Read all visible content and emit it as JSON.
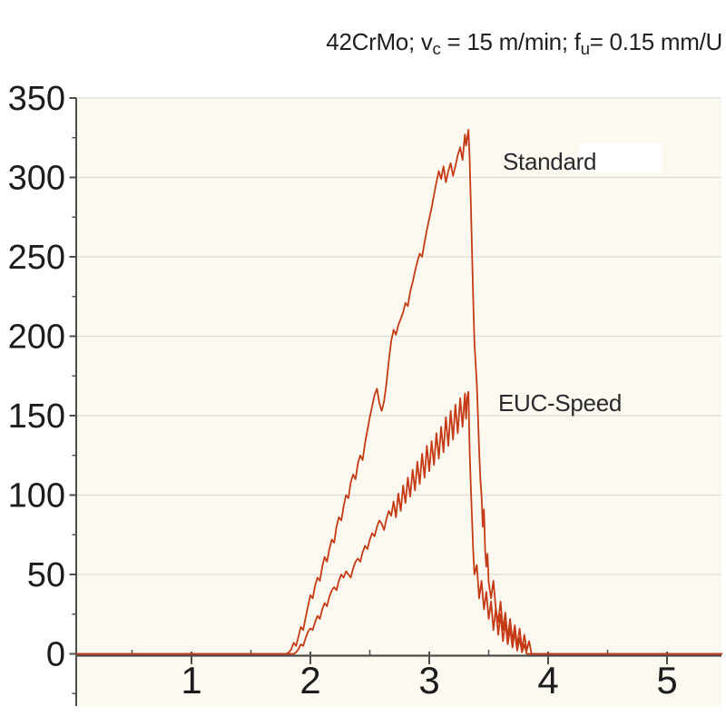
{
  "title": {
    "plain": "42CrMo; vc = 15 m/min; fu= 0.15 mm/U",
    "segments": [
      {
        "text": "42CrMo; v"
      },
      {
        "text": "c",
        "sub": true
      },
      {
        "text": " = 15 m/min;  f"
      },
      {
        "text": "u",
        "sub": true
      },
      {
        "text": "= 0.15 mm/U"
      }
    ]
  },
  "labels": {
    "standard": "Standard",
    "euc_speed": "EUC-Speed"
  },
  "chart_data": {
    "type": "line",
    "title": "42CrMo; vc = 15 m/min; fu= 0.15 mm/U",
    "xlabel": "",
    "ylabel": "",
    "xlim": [
      0,
      5.46
    ],
    "ylim": [
      -32,
      350
    ],
    "x_ticks_major": [
      1,
      2,
      3,
      4,
      5
    ],
    "x_ticks_minor": [
      0.5,
      1.5,
      2.5,
      3.5,
      4.5
    ],
    "y_ticks_major": [
      0,
      50,
      100,
      150,
      200,
      250,
      300,
      350
    ],
    "y_ticks_minor": [
      -25,
      25,
      75,
      125,
      175,
      225,
      275,
      325
    ],
    "grid": "horizontal-major",
    "legend_position": "inline-annotations",
    "colors": {
      "curve": "#c43b16",
      "plot_background": "#fcf9f1",
      "grid": "#dddcd8",
      "axis": "#4d4d4b",
      "text": "#1c1c1e",
      "page_background": "#ffffff"
    },
    "series": [
      {
        "name": "Standard",
        "label_text": "Standard",
        "color": "#c43b16",
        "points": [
          [
            0.04,
            0
          ],
          [
            1.8,
            0
          ],
          [
            1.82,
            1
          ],
          [
            1.84,
            3
          ],
          [
            1.86,
            7
          ],
          [
            1.88,
            5
          ],
          [
            1.9,
            11
          ],
          [
            1.92,
            17
          ],
          [
            1.94,
            15
          ],
          [
            1.96,
            23
          ],
          [
            1.98,
            30
          ],
          [
            2.0,
            37
          ],
          [
            2.02,
            35
          ],
          [
            2.04,
            43
          ],
          [
            2.06,
            48
          ],
          [
            2.08,
            46
          ],
          [
            2.1,
            55
          ],
          [
            2.12,
            61
          ],
          [
            2.14,
            58
          ],
          [
            2.16,
            66
          ],
          [
            2.18,
            72
          ],
          [
            2.2,
            70
          ],
          [
            2.22,
            80
          ],
          [
            2.24,
            86
          ],
          [
            2.26,
            84
          ],
          [
            2.28,
            93
          ],
          [
            2.3,
            100
          ],
          [
            2.32,
            98
          ],
          [
            2.34,
            108
          ],
          [
            2.36,
            113
          ],
          [
            2.38,
            110
          ],
          [
            2.4,
            120
          ],
          [
            2.42,
            125
          ],
          [
            2.44,
            122
          ],
          [
            2.46,
            133
          ],
          [
            2.48,
            141
          ],
          [
            2.5,
            149
          ],
          [
            2.52,
            156
          ],
          [
            2.54,
            163
          ],
          [
            2.56,
            167
          ],
          [
            2.58,
            158
          ],
          [
            2.6,
            153
          ],
          [
            2.62,
            159
          ],
          [
            2.64,
            170
          ],
          [
            2.66,
            185
          ],
          [
            2.68,
            197
          ],
          [
            2.7,
            204
          ],
          [
            2.72,
            201
          ],
          [
            2.74,
            207
          ],
          [
            2.76,
            211
          ],
          [
            2.78,
            215
          ],
          [
            2.8,
            221
          ],
          [
            2.82,
            219
          ],
          [
            2.84,
            228
          ],
          [
            2.86,
            234
          ],
          [
            2.88,
            241
          ],
          [
            2.9,
            247
          ],
          [
            2.92,
            252
          ],
          [
            2.94,
            250
          ],
          [
            2.96,
            259
          ],
          [
            2.98,
            267
          ],
          [
            3.0,
            274
          ],
          [
            3.02,
            281
          ],
          [
            3.04,
            289
          ],
          [
            3.06,
            297
          ],
          [
            3.08,
            304
          ],
          [
            3.1,
            299
          ],
          [
            3.12,
            307
          ],
          [
            3.14,
            297
          ],
          [
            3.16,
            304
          ],
          [
            3.18,
            309
          ],
          [
            3.2,
            301
          ],
          [
            3.22,
            307
          ],
          [
            3.24,
            314
          ],
          [
            3.26,
            319
          ],
          [
            3.28,
            311
          ],
          [
            3.3,
            327
          ],
          [
            3.31,
            320
          ],
          [
            3.33,
            330
          ],
          [
            3.34,
            312
          ],
          [
            3.35,
            282
          ],
          [
            3.36,
            252
          ],
          [
            3.37,
            222
          ],
          [
            3.38,
            196
          ],
          [
            3.39,
            183
          ],
          [
            3.4,
            170
          ],
          [
            3.41,
            150
          ],
          [
            3.42,
            128
          ],
          [
            3.43,
            110
          ],
          [
            3.44,
            100
          ],
          [
            3.45,
            80
          ],
          [
            3.46,
            91
          ],
          [
            3.47,
            65
          ],
          [
            3.48,
            55
          ],
          [
            3.49,
            63
          ],
          [
            3.5,
            45
          ],
          [
            3.52,
            35
          ],
          [
            3.54,
            46
          ],
          [
            3.56,
            28
          ],
          [
            3.58,
            20
          ],
          [
            3.6,
            33
          ],
          [
            3.62,
            15
          ],
          [
            3.64,
            26
          ],
          [
            3.66,
            10
          ],
          [
            3.68,
            22
          ],
          [
            3.7,
            8
          ],
          [
            3.72,
            18
          ],
          [
            3.74,
            5
          ],
          [
            3.76,
            16
          ],
          [
            3.78,
            3
          ],
          [
            3.8,
            12
          ],
          [
            3.82,
            2
          ],
          [
            3.84,
            8
          ],
          [
            3.86,
            0
          ],
          [
            4.2,
            0
          ],
          [
            5.46,
            0
          ]
        ]
      },
      {
        "name": "EUC-Speed",
        "label_text": "EUC-Speed",
        "color": "#c43b16",
        "points": [
          [
            0.04,
            0
          ],
          [
            1.86,
            0
          ],
          [
            1.88,
            1
          ],
          [
            1.9,
            3
          ],
          [
            1.92,
            6
          ],
          [
            1.94,
            5
          ],
          [
            1.96,
            10
          ],
          [
            1.98,
            14
          ],
          [
            2.0,
            16
          ],
          [
            2.02,
            15
          ],
          [
            2.04,
            20
          ],
          [
            2.06,
            24
          ],
          [
            2.08,
            22
          ],
          [
            2.1,
            28
          ],
          [
            2.12,
            32
          ],
          [
            2.14,
            30
          ],
          [
            2.16,
            36
          ],
          [
            2.18,
            40
          ],
          [
            2.2,
            42
          ],
          [
            2.22,
            40
          ],
          [
            2.24,
            46
          ],
          [
            2.26,
            50
          ],
          [
            2.28,
            48
          ],
          [
            2.3,
            52
          ],
          [
            2.32,
            50
          ],
          [
            2.34,
            48
          ],
          [
            2.36,
            54
          ],
          [
            2.38,
            58
          ],
          [
            2.4,
            60
          ],
          [
            2.42,
            58
          ],
          [
            2.44,
            64
          ],
          [
            2.46,
            68
          ],
          [
            2.48,
            66
          ],
          [
            2.5,
            72
          ],
          [
            2.52,
            76
          ],
          [
            2.54,
            74
          ],
          [
            2.56,
            80
          ],
          [
            2.58,
            84
          ],
          [
            2.6,
            82
          ],
          [
            2.62,
            78
          ],
          [
            2.64,
            85
          ],
          [
            2.66,
            90
          ],
          [
            2.68,
            87
          ],
          [
            2.7,
            96
          ],
          [
            2.72,
            86
          ],
          [
            2.74,
            101
          ],
          [
            2.76,
            90
          ],
          [
            2.78,
            106
          ],
          [
            2.8,
            95
          ],
          [
            2.82,
            111
          ],
          [
            2.84,
            99
          ],
          [
            2.86,
            116
          ],
          [
            2.88,
            103
          ],
          [
            2.9,
            121
          ],
          [
            2.92,
            107
          ],
          [
            2.94,
            126
          ],
          [
            2.96,
            111
          ],
          [
            2.98,
            131
          ],
          [
            3.0,
            115
          ],
          [
            3.02,
            134
          ],
          [
            3.04,
            119
          ],
          [
            3.06,
            139
          ],
          [
            3.08,
            123
          ],
          [
            3.1,
            143
          ],
          [
            3.12,
            127
          ],
          [
            3.14,
            149
          ],
          [
            3.16,
            131
          ],
          [
            3.18,
            153
          ],
          [
            3.2,
            135
          ],
          [
            3.22,
            157
          ],
          [
            3.24,
            139
          ],
          [
            3.26,
            161
          ],
          [
            3.28,
            143
          ],
          [
            3.3,
            164
          ],
          [
            3.31,
            148
          ],
          [
            3.32,
            162
          ],
          [
            3.33,
            165
          ],
          [
            3.34,
            128
          ],
          [
            3.35,
            104
          ],
          [
            3.36,
            84
          ],
          [
            3.37,
            64
          ],
          [
            3.38,
            50
          ],
          [
            3.4,
            56
          ],
          [
            3.42,
            35
          ],
          [
            3.44,
            46
          ],
          [
            3.46,
            28
          ],
          [
            3.48,
            39
          ],
          [
            3.5,
            22
          ],
          [
            3.52,
            33
          ],
          [
            3.54,
            15
          ],
          [
            3.56,
            29
          ],
          [
            3.58,
            12
          ],
          [
            3.6,
            25
          ],
          [
            3.62,
            8
          ],
          [
            3.64,
            20
          ],
          [
            3.66,
            6
          ],
          [
            3.68,
            16
          ],
          [
            3.7,
            4
          ],
          [
            3.72,
            14
          ],
          [
            3.74,
            2
          ],
          [
            3.76,
            10
          ],
          [
            3.78,
            1
          ],
          [
            3.8,
            6
          ],
          [
            3.82,
            0
          ],
          [
            4.2,
            0
          ],
          [
            5.46,
            0
          ]
        ]
      }
    ]
  }
}
